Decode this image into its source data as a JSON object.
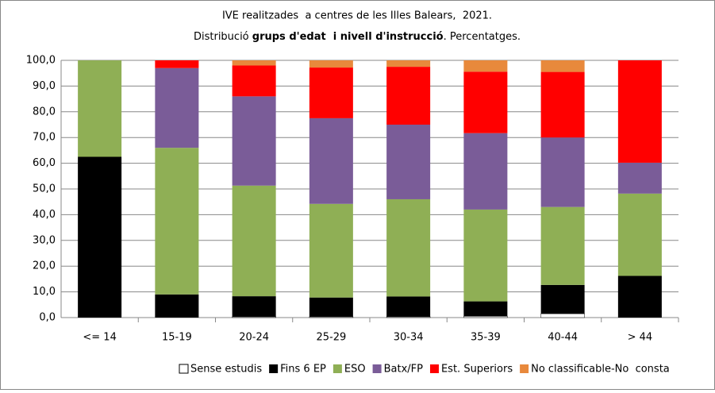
{
  "chart_data": {
    "type": "stacked_bar",
    "title": "IVE realitzades  a centres de les Illes Balears,  2021.",
    "subtitle": [
      "Distribució ",
      "grups d'edat  i nivell d'instrucció",
      ". Percentatges."
    ],
    "categories": [
      "<= 14",
      "15-19",
      "20-24",
      "25-29",
      "30-34",
      "35-39",
      "40-44",
      "> 44"
    ],
    "series": [
      {
        "name": "Sense estudis",
        "color": "#ffffff",
        "values": [
          0,
          0,
          0.3,
          0.3,
          0.3,
          0.5,
          1.5,
          0
        ]
      },
      {
        "name": "Fins 6 EP",
        "color": "#000000",
        "values": [
          62.5,
          9,
          8,
          7.5,
          7.9,
          5.8,
          11.2,
          16.2
        ]
      },
      {
        "name": "ESO",
        "color": "#8faf55",
        "values": [
          37.5,
          57,
          43,
          36.4,
          37.8,
          35.7,
          30.3,
          32
        ]
      },
      {
        "name": "Batx/FP",
        "color": "#7a5c98",
        "values": [
          0,
          31,
          34.7,
          33.3,
          29,
          29.7,
          27,
          12
        ]
      },
      {
        "name": "Est. Superiors",
        "color": "#ff0000",
        "values": [
          0,
          3,
          12,
          19.7,
          22.5,
          23.9,
          25.5,
          39.8
        ]
      },
      {
        "name": "No classificable-No  consta",
        "color": "#e8893c",
        "values": [
          0,
          0,
          2,
          2.8,
          2.5,
          4.4,
          4.5,
          0
        ]
      }
    ],
    "ylim": [
      0,
      100
    ],
    "yticks": [
      {
        "value": 0,
        "label": "0,0"
      },
      {
        "value": 10,
        "label": "10,0"
      },
      {
        "value": 20,
        "label": "20,0"
      },
      {
        "value": 30,
        "label": "30,0"
      },
      {
        "value": 40,
        "label": "40,0"
      },
      {
        "value": 50,
        "label": "50,0"
      },
      {
        "value": 60,
        "label": "60,0"
      },
      {
        "value": 70,
        "label": "70,0"
      },
      {
        "value": 80,
        "label": "80,0"
      },
      {
        "value": 90,
        "label": "90,0"
      },
      {
        "value": 100,
        "label": "100,0"
      }
    ],
    "grid": true
  }
}
